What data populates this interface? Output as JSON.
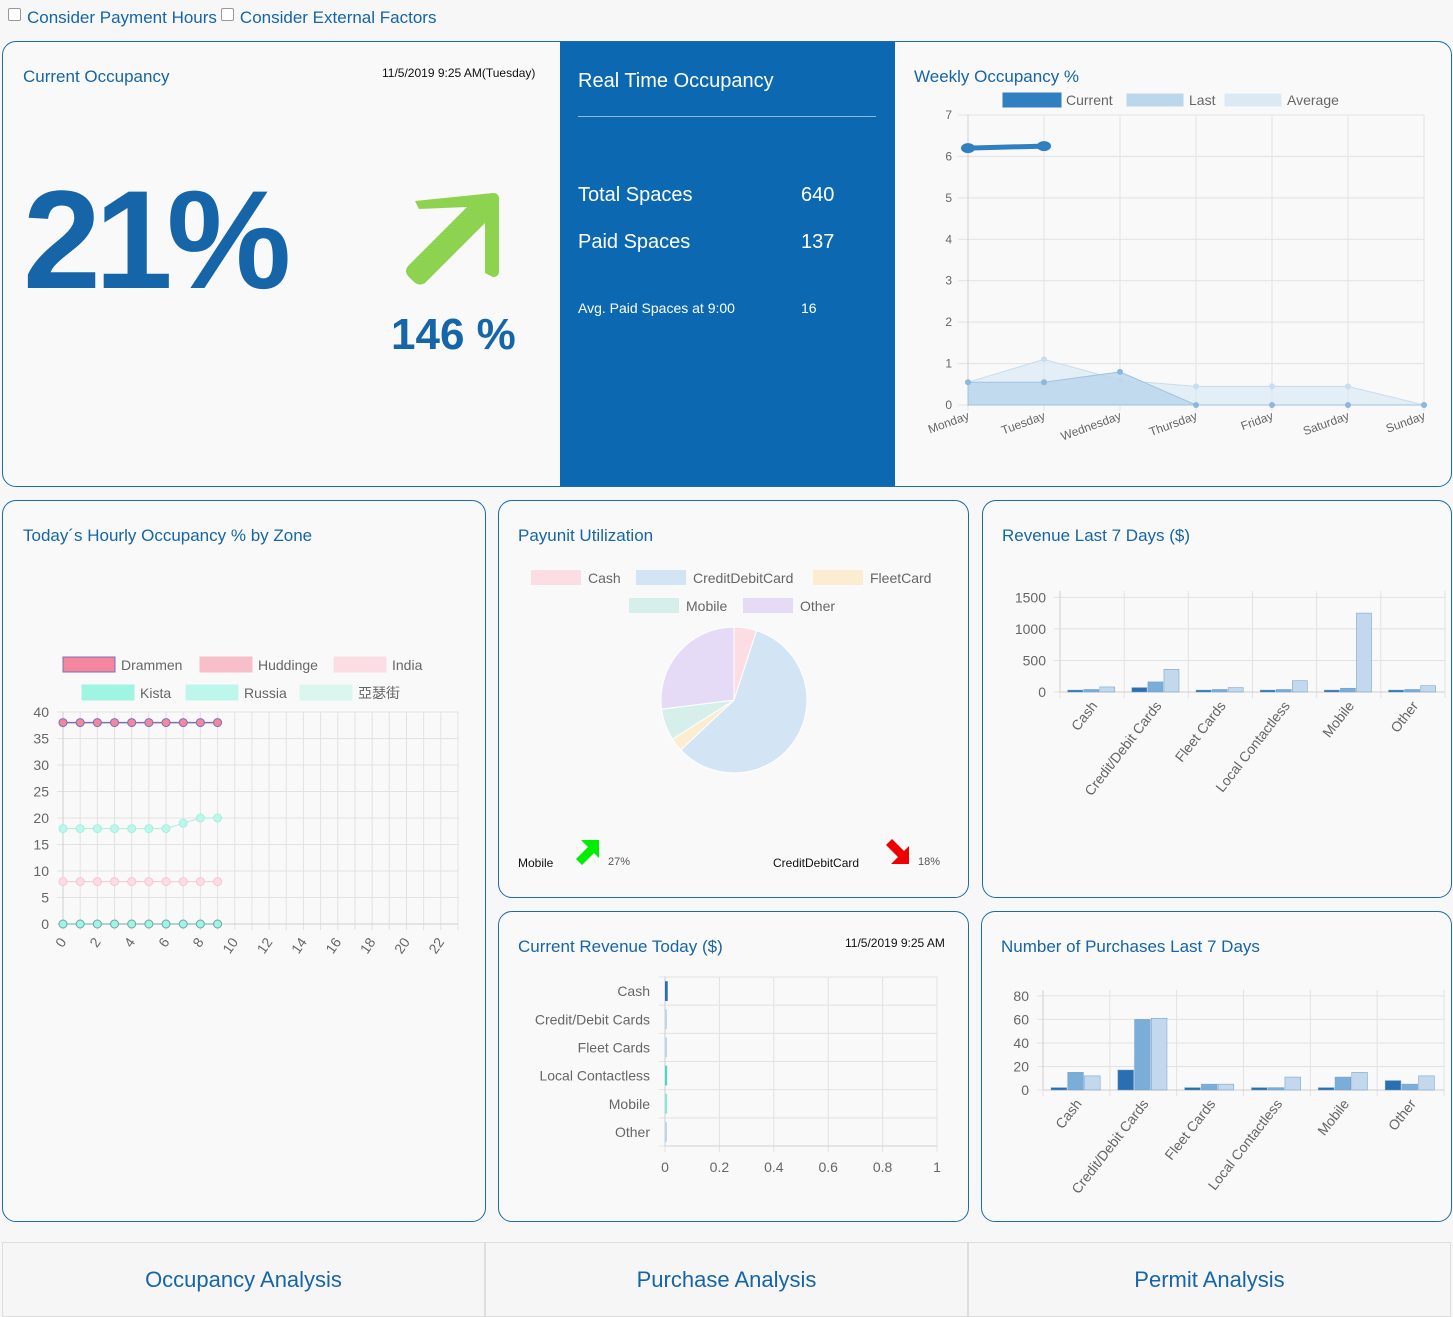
{
  "options": {
    "payment_hours": {
      "label": "Consider Payment Hours",
      "checked": false
    },
    "external_factors": {
      "label": "Consider External Factors",
      "checked": false
    }
  },
  "current_occupancy": {
    "title": "Current Occupancy",
    "timestamp": "11/5/2019 9:25 AM(Tuesday)",
    "value": "21%",
    "trend_icon": "arrow-up-right-icon",
    "trend_color": "#8ed34f",
    "change": "146 %"
  },
  "realtime": {
    "title": "Real Time Occupancy",
    "background": "#0b68b1",
    "rows": [
      {
        "label": "Total Spaces",
        "value": "640"
      },
      {
        "label": "Paid Spaces",
        "value": "137"
      },
      {
        "label": "Avg. Paid Spaces at 9:00",
        "value": "16"
      }
    ]
  },
  "weekly": {
    "title": "Weekly Occupancy %",
    "chart_data": {
      "type": "line",
      "title": "Weekly Occupancy %",
      "categories": [
        "Monday",
        "Tuesday",
        "Wednesday",
        "Thursday",
        "Friday",
        "Saturday",
        "Sunday"
      ],
      "ylim": [
        0,
        7
      ],
      "yticks": [
        0,
        1,
        2,
        3,
        4,
        5,
        6,
        7
      ],
      "series": [
        {
          "name": "Current",
          "values": [
            6.2,
            6.25,
            null,
            null,
            null,
            null,
            null
          ],
          "color": "#2f7fc1"
        },
        {
          "name": "Last",
          "values": [
            0.55,
            0.55,
            0.8,
            0.0,
            0.0,
            0.0,
            0.0
          ],
          "color": "#bcd6ec"
        },
        {
          "name": "Average",
          "values": [
            0.55,
            1.1,
            0.6,
            0.45,
            0.45,
            0.45,
            0.0
          ],
          "color": "#dbe9f5"
        }
      ]
    }
  },
  "hourly": {
    "title": "Today´s Hourly Occupancy % by Zone",
    "chart_data": {
      "type": "line",
      "title": "Today´s Hourly Occupancy % by Zone",
      "xlim": [
        0,
        23
      ],
      "xticks": [
        0,
        2,
        4,
        6,
        8,
        10,
        12,
        14,
        16,
        18,
        20,
        22
      ],
      "ylim": [
        0,
        40
      ],
      "yticks": [
        0,
        5,
        10,
        15,
        20,
        25,
        30,
        35,
        40
      ],
      "x": [
        0,
        1,
        2,
        3,
        4,
        5,
        6,
        7,
        8,
        9
      ],
      "series": [
        {
          "name": "Drammen",
          "values": [
            38,
            38,
            38,
            38,
            38,
            38,
            38,
            38,
            38,
            38
          ],
          "color": "#f4879f",
          "stroke": "#7a6fb8"
        },
        {
          "name": "Huddinge",
          "values": [
            0,
            0,
            0,
            0,
            0,
            0,
            0,
            0,
            0,
            0
          ],
          "color": "#f8bfcb",
          "stroke": "#f8bfcb"
        },
        {
          "name": "India",
          "values": [
            8,
            8,
            8,
            8,
            8,
            8,
            8,
            8,
            8,
            8
          ],
          "color": "#fcdde4",
          "stroke": "#f5c5d0"
        },
        {
          "name": "Kista",
          "values": [
            0,
            0,
            0,
            0,
            0,
            0,
            0,
            0,
            0,
            0
          ],
          "color": "#9ff4e2",
          "stroke": "#6fa8a8"
        },
        {
          "name": "Russia",
          "values": [
            18,
            18,
            18,
            18,
            18,
            18,
            18,
            19,
            20,
            20
          ],
          "color": "#bdf6ea",
          "stroke": "#a5efe0"
        },
        {
          "name": "亞瑟街",
          "values": [
            0,
            0,
            0,
            0,
            0,
            0,
            0,
            0,
            0,
            0
          ],
          "color": "#daf6ef",
          "stroke": "#c9f0e6"
        }
      ]
    }
  },
  "payunit": {
    "title": "Payunit Utilization",
    "chart_data": {
      "type": "pie",
      "title": "Payunit Utilization",
      "labels": [
        "Cash",
        "CreditDebitCard",
        "FleetCard",
        "Mobile",
        "Other"
      ],
      "values": [
        5,
        58,
        3,
        7,
        27
      ],
      "colors": [
        "#fbdde3",
        "#d3e5f4",
        "#fcedd2",
        "#d6efeb",
        "#e6dbf7"
      ]
    },
    "footer": {
      "left_label": "Mobile",
      "left_icon": "arrow-up-right-icon",
      "left_color": "#00ee00",
      "left_value": "27%",
      "right_label": "CreditDebitCard",
      "right_icon": "arrow-down-right-icon",
      "right_color": "#ee0000",
      "right_value": "18%"
    }
  },
  "revenue7": {
    "title": "Revenue Last 7 Days ($)",
    "chart_data": {
      "type": "bar",
      "title": "Revenue Last 7 Days ($)",
      "categories": [
        "Cash",
        "Credit/Debit Cards",
        "Fleet Cards",
        "Local Contactless",
        "Mobile",
        "Other"
      ],
      "ylim": [
        0,
        1600
      ],
      "yticks": [
        0,
        500,
        1000,
        1500
      ],
      "series": [
        {
          "name": "Current",
          "values": [
            30,
            70,
            30,
            30,
            30,
            30
          ],
          "color": "#2a6fb0"
        },
        {
          "name": "Last",
          "values": [
            40,
            160,
            40,
            40,
            60,
            40
          ],
          "color": "#7aaed8"
        },
        {
          "name": "Average",
          "values": [
            80,
            360,
            70,
            180,
            1250,
            100
          ],
          "color": "#c3d8ec"
        }
      ]
    }
  },
  "revenue_today": {
    "title": "Current Revenue Today ($)",
    "timestamp": "11/5/2019 9:25 AM",
    "chart_data": {
      "type": "bar",
      "orientation": "horizontal",
      "title": "Current Revenue Today ($)",
      "categories": [
        "Cash",
        "Credit/Debit Cards",
        "Fleet Cards",
        "Local Contactless",
        "Mobile",
        "Other"
      ],
      "values": [
        0.01,
        0.005,
        0.002,
        0.008,
        0.008,
        0.002
      ],
      "colors": [
        "#2a6fb0",
        "#bcd6ec",
        "#bcd6ec",
        "#4fd8c6",
        "#8fe3d8",
        "#bcd6ec"
      ],
      "xlim": [
        0,
        1
      ],
      "xticks": [
        "0",
        "0.2",
        "0.4",
        "0.6",
        "0.8",
        "1"
      ]
    }
  },
  "purchases7": {
    "title": "Number of Purchases Last 7 Days",
    "chart_data": {
      "type": "bar",
      "title": "Number of Purchases Last 7 Days",
      "categories": [
        "Cash",
        "Credit/Debit Cards",
        "Fleet Cards",
        "Local Contactless",
        "Mobile",
        "Other"
      ],
      "ylim": [
        0,
        85
      ],
      "yticks": [
        0,
        20,
        40,
        60,
        80
      ],
      "series": [
        {
          "name": "Current",
          "values": [
            2,
            17,
            2,
            2,
            2,
            8
          ],
          "color": "#2a6fb0"
        },
        {
          "name": "Last",
          "values": [
            15,
            60,
            5,
            2,
            11,
            5
          ],
          "color": "#7aaed8"
        },
        {
          "name": "Average",
          "values": [
            12,
            61,
            5,
            11,
            15,
            12
          ],
          "color": "#c3d8ec"
        }
      ]
    }
  },
  "nav": {
    "occupancy": "Occupancy Analysis",
    "purchase": "Purchase Analysis",
    "permit": "Permit Analysis"
  }
}
